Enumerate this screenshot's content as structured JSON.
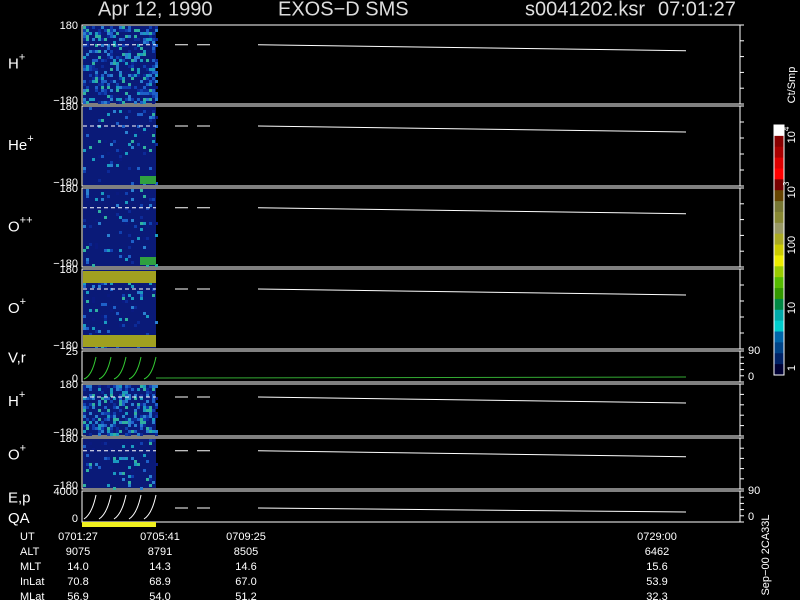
{
  "header": {
    "date": "Apr 12, 1990",
    "mission": "EXOS−D SMS",
    "file": "s0041202.ksr",
    "time": "07:01:27"
  },
  "panels": [
    {
      "label": "H",
      "sup": "+",
      "top": "180",
      "bottom": "−180"
    },
    {
      "label": "He",
      "sup": "+",
      "top": "180",
      "bottom": "−180"
    },
    {
      "label": "O",
      "sup": "++",
      "top": "180",
      "bottom": "−180"
    },
    {
      "label": "O",
      "sup": "+",
      "top": "180",
      "bottom": "−180"
    },
    {
      "label": "V,r",
      "top": "25",
      "bottom": "0",
      "right_top": "90",
      "right_bottom": "0"
    },
    {
      "label": "H",
      "sup": "+",
      "top": "180",
      "bottom": "−180"
    },
    {
      "label": "O",
      "sup": "+",
      "top": "180",
      "bottom": "−180"
    },
    {
      "label": "E,p",
      "label2": "QA",
      "top": "4000",
      "bottom": "0",
      "right_top": "90",
      "right_bottom": "0"
    }
  ],
  "colorbar": {
    "unit": "Ct/Smp",
    "labels": [
      {
        "base": "10",
        "exp": "4"
      },
      {
        "base": "10",
        "exp": "3"
      },
      {
        "base": "100"
      },
      {
        "base": "10"
      },
      {
        "base": "1"
      }
    ]
  },
  "footer": {
    "rows": [
      {
        "name": "UT",
        "values": [
          "0701:27",
          "0705:41",
          "0709:25",
          "0729:00"
        ]
      },
      {
        "name": "ALT",
        "values": [
          "9075",
          "8791",
          "8505",
          "6462"
        ]
      },
      {
        "name": "MLT",
        "values": [
          "14.0",
          "14.3",
          "14.6",
          "15.6"
        ]
      },
      {
        "name": "InLat",
        "values": [
          "70.8",
          "68.9",
          "67.0",
          "53.9"
        ]
      },
      {
        "name": "MLat",
        "values": [
          "56.9",
          "54.0",
          "51.2",
          "32.3"
        ]
      }
    ],
    "side": "Sep−00 2CA33L"
  }
}
